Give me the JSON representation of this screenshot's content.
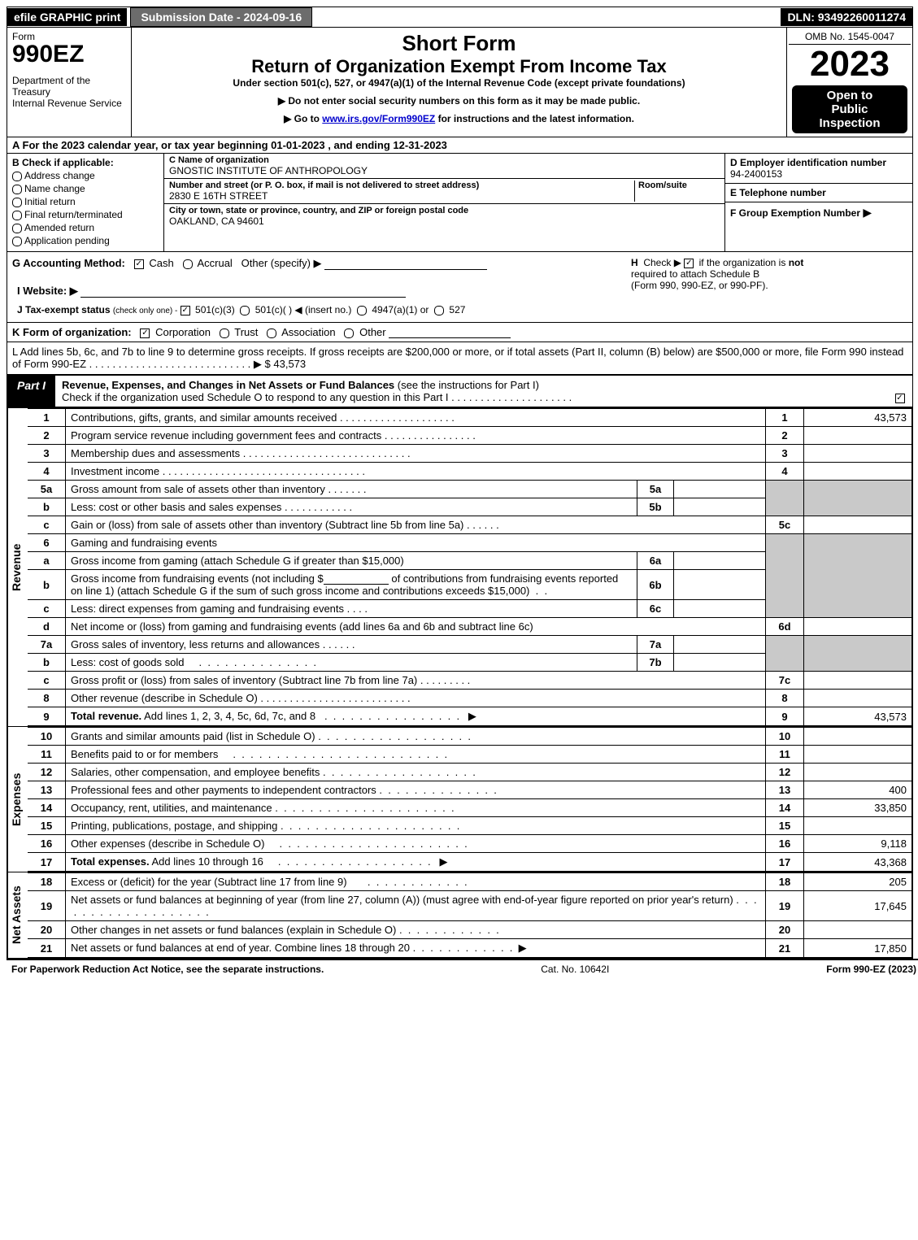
{
  "topbar": {
    "efile": "efile GRAPHIC print",
    "submission": "Submission Date - 2024-09-16",
    "dln": "DLN: 93492260011274"
  },
  "header": {
    "form_label": "Form",
    "form_number": "990EZ",
    "dept1": "Department of the Treasury",
    "dept2": "Internal Revenue Service",
    "short_form": "Short Form",
    "return_title": "Return of Organization Exempt From Income Tax",
    "under_section": "Under section 501(c), 527, or 4947(a)(1) of the Internal Revenue Code (except private foundations)",
    "ssn_note": "▶ Do not enter social security numbers on this form as it may be made public.",
    "goto": "▶ Go to ",
    "goto_link": "www.irs.gov/Form990EZ",
    "goto_suffix": " for instructions and the latest information.",
    "omb": "OMB No. 1545-0047",
    "year": "2023",
    "open1": "Open to",
    "open2": "Public",
    "open3": "Inspection"
  },
  "sectionA": "A  For the 2023 calendar year, or tax year beginning 01-01-2023 , and ending 12-31-2023",
  "sectionB": {
    "title": "B",
    "subtitle": "Check if applicable:",
    "opts": [
      "Address change",
      "Name change",
      "Initial return",
      "Final return/terminated",
      "Amended return",
      "Application pending"
    ]
  },
  "sectionC": {
    "name_label": "C Name of organization",
    "name": "GNOSTIC INSTITUTE OF ANTHROPOLOGY",
    "street_label": "Number and street (or P. O. box, if mail is not delivered to street address)",
    "room_label": "Room/suite",
    "street": "2830 E 16TH STREET",
    "city_label": "City or town, state or province, country, and ZIP or foreign postal code",
    "city": "OAKLAND, CA  94601"
  },
  "sectionD": {
    "label": "D Employer identification number",
    "value": "94-2400153"
  },
  "sectionE": {
    "label": "E Telephone number",
    "value": ""
  },
  "sectionF": {
    "label": "F Group Exemption Number",
    "arrow": "▶"
  },
  "sectionG": {
    "label": "G Accounting Method:",
    "cash": "Cash",
    "accrual": "Accrual",
    "other": "Other (specify) ▶"
  },
  "sectionH": {
    "label": "H",
    "text1": "Check ▶",
    "text2": "if the organization is",
    "not": "not",
    "text3": "required to attach Schedule B",
    "text4": "(Form 990, 990-EZ, or 990-PF)."
  },
  "sectionI": {
    "label": "I Website: ▶"
  },
  "sectionJ": {
    "prefix": "J Tax-exempt status",
    "note": "(check only one) -",
    "opt1": "501(c)(3)",
    "opt2": "501(c)(  )",
    "insert": "◀ (insert no.)",
    "opt3": "4947(a)(1) or",
    "opt4": "527"
  },
  "sectionK": {
    "prefix": "K Form of organization:",
    "opts": [
      "Corporation",
      "Trust",
      "Association",
      "Other"
    ]
  },
  "sectionL": {
    "text": "L Add lines 5b, 6c, and 7b to line 9 to determine gross receipts. If gross receipts are $200,000 or more, or if total assets (Part II, column (B) below) are $500,000 or more, file Form 990 instead of Form 990-EZ",
    "arrow": "▶ $",
    "value": "43,573"
  },
  "partI": {
    "label": "Part I",
    "title": "Revenue, Expenses, and Changes in Net Assets or Fund Balances",
    "note": "(see the instructions for Part I)",
    "check_line": "Check if the organization used Schedule O to respond to any question in this Part I"
  },
  "revenue_label": "Revenue",
  "expenses_label": "Expenses",
  "netassets_label": "Net Assets",
  "lines": {
    "1": {
      "desc": "Contributions, gifts, grants, and similar amounts received",
      "num": "1",
      "amt": "43,573"
    },
    "2": {
      "desc": "Program service revenue including government fees and contracts",
      "num": "2",
      "amt": ""
    },
    "3": {
      "desc": "Membership dues and assessments",
      "num": "3",
      "amt": ""
    },
    "4": {
      "desc": "Investment income",
      "num": "4",
      "amt": ""
    },
    "5a": {
      "desc": "Gross amount from sale of assets other than inventory",
      "sub": "5a"
    },
    "5b": {
      "desc": "Less: cost or other basis and sales expenses",
      "sub": "5b"
    },
    "5c": {
      "desc": "Gain or (loss) from sale of assets other than inventory (Subtract line 5b from line 5a)",
      "num": "5c",
      "amt": ""
    },
    "6": {
      "desc": "Gaming and fundraising events"
    },
    "6a": {
      "desc": "Gross income from gaming (attach Schedule G if greater than $15,000)",
      "sub": "6a"
    },
    "6b": {
      "desc1": "Gross income from fundraising events (not including $",
      "desc2": "of contributions from fundraising events reported on line 1) (attach Schedule G if the sum of such gross income and contributions exceeds $15,000)",
      "sub": "6b"
    },
    "6c": {
      "desc": "Less: direct expenses from gaming and fundraising events",
      "sub": "6c"
    },
    "6d": {
      "desc": "Net income or (loss) from gaming and fundraising events (add lines 6a and 6b and subtract line 6c)",
      "num": "6d",
      "amt": ""
    },
    "7a": {
      "desc": "Gross sales of inventory, less returns and allowances",
      "sub": "7a"
    },
    "7b": {
      "desc": "Less: cost of goods sold",
      "sub": "7b"
    },
    "7c": {
      "desc": "Gross profit or (loss) from sales of inventory (Subtract line 7b from line 7a)",
      "num": "7c",
      "amt": ""
    },
    "8": {
      "desc": "Other revenue (describe in Schedule O)",
      "num": "8",
      "amt": ""
    },
    "9": {
      "desc": "Total revenue. Add lines 1, 2, 3, 4, 5c, 6d, 7c, and 8",
      "num": "9",
      "amt": "43,573",
      "bold": true
    },
    "10": {
      "desc": "Grants and similar amounts paid (list in Schedule O)",
      "num": "10",
      "amt": ""
    },
    "11": {
      "desc": "Benefits paid to or for members",
      "num": "11",
      "amt": ""
    },
    "12": {
      "desc": "Salaries, other compensation, and employee benefits",
      "num": "12",
      "amt": ""
    },
    "13": {
      "desc": "Professional fees and other payments to independent contractors",
      "num": "13",
      "amt": "400"
    },
    "14": {
      "desc": "Occupancy, rent, utilities, and maintenance",
      "num": "14",
      "amt": "33,850"
    },
    "15": {
      "desc": "Printing, publications, postage, and shipping",
      "num": "15",
      "amt": ""
    },
    "16": {
      "desc": "Other expenses (describe in Schedule O)",
      "num": "16",
      "amt": "9,118"
    },
    "17": {
      "desc": "Total expenses. Add lines 10 through 16",
      "num": "17",
      "amt": "43,368",
      "bold": true
    },
    "18": {
      "desc": "Excess or (deficit) for the year (Subtract line 17 from line 9)",
      "num": "18",
      "amt": "205"
    },
    "19": {
      "desc": "Net assets or fund balances at beginning of year (from line 27, column (A)) (must agree with end-of-year figure reported on prior year's return)",
      "num": "19",
      "amt": "17,645"
    },
    "20": {
      "desc": "Other changes in net assets or fund balances (explain in Schedule O)",
      "num": "20",
      "amt": ""
    },
    "21": {
      "desc": "Net assets or fund balances at end of year. Combine lines 18 through 20",
      "num": "21",
      "amt": "17,850"
    }
  },
  "footer": {
    "left": "For Paperwork Reduction Act Notice, see the separate instructions.",
    "center": "Cat. No. 10642I",
    "right_prefix": "Form ",
    "right_form": "990-EZ",
    "right_suffix": " (2023)"
  }
}
